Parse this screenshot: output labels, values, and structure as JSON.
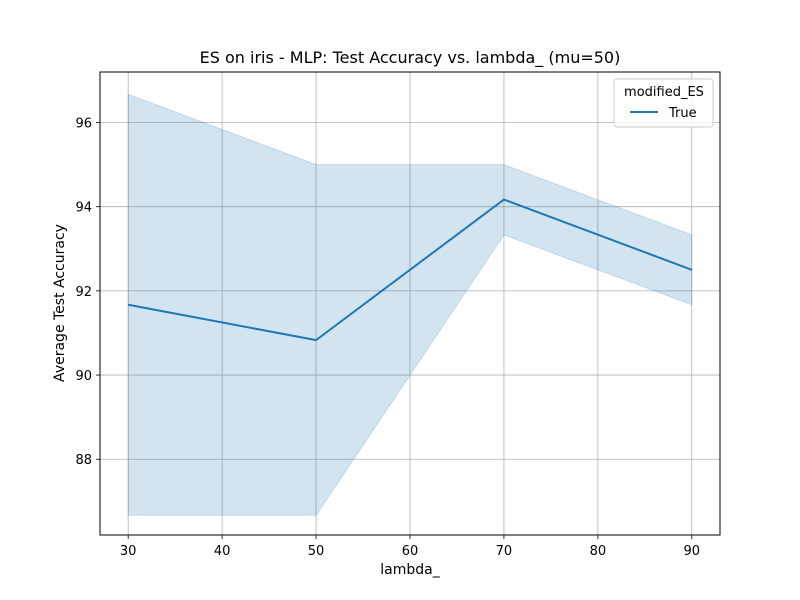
{
  "chart_data": {
    "type": "line",
    "title": "ES on iris - MLP: Test Accuracy vs. lambda_ (mu=50)",
    "xlabel": "lambda_",
    "ylabel": "Average Test Accuracy",
    "x": [
      30,
      50,
      70,
      90
    ],
    "xlim": [
      27,
      93
    ],
    "ylim": [
      86.2,
      97.2
    ],
    "xticks": [
      30,
      40,
      50,
      60,
      70,
      80,
      90
    ],
    "yticks": [
      88,
      90,
      92,
      94,
      96
    ],
    "grid": true,
    "legend": {
      "title": "modified_ES",
      "placement": "top-right"
    },
    "series": [
      {
        "name": "True",
        "color": "#1f77b4",
        "values": [
          91.67,
          90.83,
          94.17,
          92.5
        ],
        "ci_lower": [
          86.67,
          86.67,
          93.33,
          91.67
        ],
        "ci_upper": [
          96.67,
          95.0,
          95.0,
          93.33
        ]
      }
    ]
  }
}
